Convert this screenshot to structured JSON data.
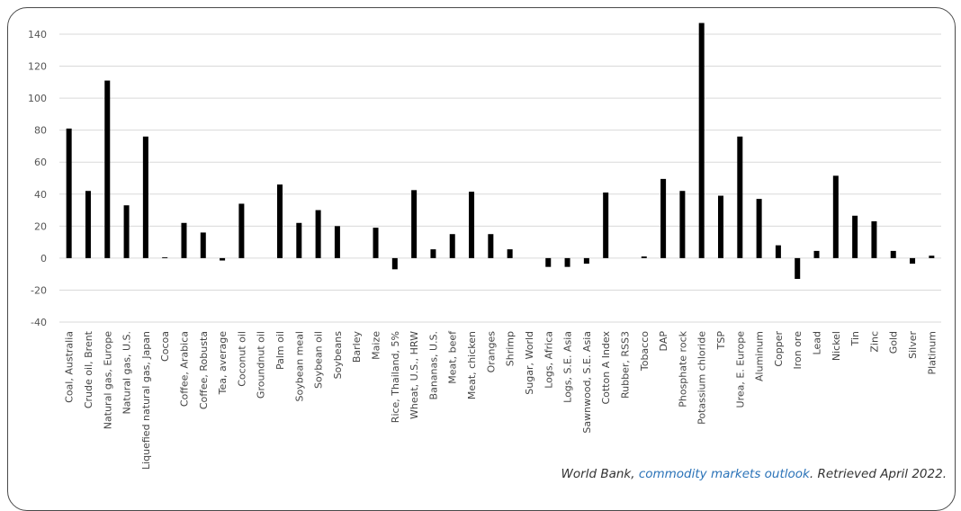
{
  "chart_data": {
    "type": "bar",
    "title": "",
    "xlabel": "",
    "ylabel": "",
    "ylim": [
      -40,
      140
    ],
    "yticks": [
      -40,
      -20,
      0,
      20,
      40,
      60,
      80,
      100,
      120,
      140
    ],
    "grid": true,
    "bar_color": "#000000",
    "grid_color": "#d9d9d9",
    "categories": [
      "Coal, Australia",
      "Crude oil, Brent",
      "Natural gas, Europe",
      "Natural gas, U.S.",
      "Liquefied natural gas, Japan",
      "Cocoa",
      "Coffee, Arabica",
      "Coffee, Robusta",
      "Tea, average",
      "Coconut oil",
      "Groundnut oil",
      "Palm oil",
      "Soybean meal",
      "Soybean oil",
      "Soybeans",
      "Barley",
      "Maize",
      "Rice, Thailand, 5%",
      "Wheat, U.S., HRW",
      "Bananas, U.S.",
      "Meat, beef",
      "Meat, chicken",
      "Oranges",
      "Shrimp",
      "Sugar, World",
      "Logs, Africa",
      "Logs, S.E. Asia",
      "Sawnwood, S.E. Asia",
      "Cotton A Index",
      "Rubber, RSS3",
      "Tobacco",
      "DAP",
      "Phosphate rock",
      "Potassium chloride",
      "TSP",
      "Urea, E. Europe",
      "Aluminum",
      "Copper",
      "Iron ore",
      "Lead",
      "Nickel",
      "Tin",
      "Zinc",
      "Gold",
      "Silver",
      "Platinum"
    ],
    "values": [
      81,
      42,
      111,
      33,
      76,
      0.5,
      22,
      16,
      -1.5,
      34,
      0,
      46,
      22,
      30,
      20,
      0,
      19,
      -7,
      42.5,
      5.5,
      15,
      41.5,
      15,
      5.5,
      0,
      -5.5,
      -5.5,
      -3.5,
      41,
      0,
      1,
      49.5,
      42,
      147,
      39,
      76,
      37,
      8,
      -13,
      4.5,
      51.5,
      26.5,
      23,
      4.5,
      -3.5,
      1.5
    ]
  },
  "caption": {
    "prefix": "World Bank, ",
    "link_text": "commodity markets outlook",
    "suffix": ". Retrieved April 2022."
  }
}
